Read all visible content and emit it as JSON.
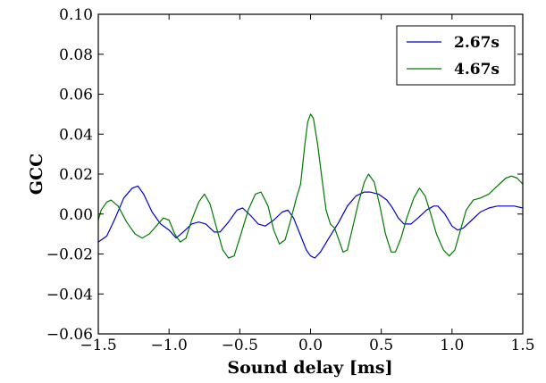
{
  "chart_data": {
    "type": "line",
    "xlabel": "Sound delay [ms]",
    "ylabel": "GCC",
    "xlim": [
      -1.5,
      1.5
    ],
    "ylim": [
      -0.06,
      0.1
    ],
    "xticks": [
      "−1.5",
      "−1.0",
      "−0.5",
      "0.0",
      "0.5",
      "1.0",
      "1.5"
    ],
    "xtick_values": [
      -1.5,
      -1.0,
      -0.5,
      0.0,
      0.5,
      1.0,
      1.5
    ],
    "yticks": [
      "−0.06",
      "−0.04",
      "−0.02",
      "0.00",
      "0.02",
      "0.04",
      "0.06",
      "0.08",
      "0.10"
    ],
    "ytick_values": [
      -0.06,
      -0.04,
      -0.02,
      0.0,
      0.02,
      0.04,
      0.06,
      0.08,
      0.1
    ],
    "grid": false,
    "legend_position": "top-right",
    "series": [
      {
        "name": "2.67s",
        "color": "#0000cc",
        "points": [
          [
            -1.5,
            -0.014
          ],
          [
            -1.44,
            -0.011
          ],
          [
            -1.38,
            -0.002
          ],
          [
            -1.32,
            0.008
          ],
          [
            -1.26,
            0.013
          ],
          [
            -1.22,
            0.014
          ],
          [
            -1.18,
            0.01
          ],
          [
            -1.12,
            0.001
          ],
          [
            -1.06,
            -0.005
          ],
          [
            -1.0,
            -0.008
          ],
          [
            -0.95,
            -0.012
          ],
          [
            -0.9,
            -0.009
          ],
          [
            -0.84,
            -0.005
          ],
          [
            -0.79,
            -0.004
          ],
          [
            -0.74,
            -0.005
          ],
          [
            -0.68,
            -0.009
          ],
          [
            -0.64,
            -0.009
          ],
          [
            -0.58,
            -0.004
          ],
          [
            -0.52,
            0.002
          ],
          [
            -0.48,
            0.003
          ],
          [
            -0.42,
            -0.001
          ],
          [
            -0.37,
            -0.005
          ],
          [
            -0.32,
            -0.006
          ],
          [
            -0.26,
            -0.003
          ],
          [
            -0.2,
            0.001
          ],
          [
            -0.16,
            0.002
          ],
          [
            -0.12,
            -0.002
          ],
          [
            -0.08,
            -0.009
          ],
          [
            -0.03,
            -0.018
          ],
          [
            0.0,
            -0.021
          ],
          [
            0.03,
            -0.022
          ],
          [
            0.07,
            -0.019
          ],
          [
            0.13,
            -0.012
          ],
          [
            0.2,
            -0.004
          ],
          [
            0.26,
            0.004
          ],
          [
            0.32,
            0.009
          ],
          [
            0.38,
            0.011
          ],
          [
            0.42,
            0.011
          ],
          [
            0.48,
            0.01
          ],
          [
            0.54,
            0.007
          ],
          [
            0.58,
            0.003
          ],
          [
            0.62,
            -0.002
          ],
          [
            0.66,
            -0.005
          ],
          [
            0.71,
            -0.005
          ],
          [
            0.76,
            -0.002
          ],
          [
            0.82,
            0.002
          ],
          [
            0.87,
            0.004
          ],
          [
            0.9,
            0.004
          ],
          [
            0.95,
            0.0
          ],
          [
            1.0,
            -0.006
          ],
          [
            1.04,
            -0.008
          ],
          [
            1.08,
            -0.007
          ],
          [
            1.14,
            -0.003
          ],
          [
            1.2,
            0.001
          ],
          [
            1.26,
            0.003
          ],
          [
            1.32,
            0.004
          ],
          [
            1.38,
            0.004
          ],
          [
            1.44,
            0.004
          ],
          [
            1.5,
            0.003
          ]
        ]
      },
      {
        "name": "4.67s",
        "color": "#007a00",
        "points": [
          [
            -1.5,
            -0.003
          ],
          [
            -1.48,
            0.002
          ],
          [
            -1.44,
            0.006
          ],
          [
            -1.41,
            0.007
          ],
          [
            -1.36,
            0.004
          ],
          [
            -1.3,
            -0.004
          ],
          [
            -1.24,
            -0.01
          ],
          [
            -1.19,
            -0.012
          ],
          [
            -1.14,
            -0.01
          ],
          [
            -1.09,
            -0.006
          ],
          [
            -1.04,
            -0.002
          ],
          [
            -1.0,
            -0.003
          ],
          [
            -0.96,
            -0.01
          ],
          [
            -0.92,
            -0.014
          ],
          [
            -0.88,
            -0.012
          ],
          [
            -0.84,
            -0.003
          ],
          [
            -0.79,
            0.006
          ],
          [
            -0.75,
            0.01
          ],
          [
            -0.71,
            0.005
          ],
          [
            -0.66,
            -0.008
          ],
          [
            -0.62,
            -0.018
          ],
          [
            -0.58,
            -0.022
          ],
          [
            -0.54,
            -0.021
          ],
          [
            -0.5,
            -0.012
          ],
          [
            -0.44,
            0.002
          ],
          [
            -0.39,
            0.01
          ],
          [
            -0.35,
            0.011
          ],
          [
            -0.3,
            0.004
          ],
          [
            -0.26,
            -0.008
          ],
          [
            -0.22,
            -0.015
          ],
          [
            -0.18,
            -0.013
          ],
          [
            -0.14,
            -0.003
          ],
          [
            -0.1,
            0.008
          ],
          [
            -0.07,
            0.015
          ],
          [
            -0.04,
            0.035
          ],
          [
            -0.02,
            0.046
          ],
          [
            0.0,
            0.05
          ],
          [
            0.02,
            0.048
          ],
          [
            0.05,
            0.035
          ],
          [
            0.08,
            0.018
          ],
          [
            0.11,
            0.002
          ],
          [
            0.14,
            -0.005
          ],
          [
            0.17,
            -0.007
          ],
          [
            0.2,
            -0.013
          ],
          [
            0.23,
            -0.019
          ],
          [
            0.26,
            -0.018
          ],
          [
            0.3,
            -0.006
          ],
          [
            0.34,
            0.006
          ],
          [
            0.38,
            0.016
          ],
          [
            0.41,
            0.02
          ],
          [
            0.45,
            0.016
          ],
          [
            0.49,
            0.004
          ],
          [
            0.53,
            -0.01
          ],
          [
            0.57,
            -0.019
          ],
          [
            0.6,
            -0.019
          ],
          [
            0.64,
            -0.012
          ],
          [
            0.68,
            -0.002
          ],
          [
            0.73,
            0.008
          ],
          [
            0.77,
            0.013
          ],
          [
            0.81,
            0.009
          ],
          [
            0.85,
            0.0
          ],
          [
            0.89,
            -0.01
          ],
          [
            0.94,
            -0.018
          ],
          [
            0.98,
            -0.021
          ],
          [
            1.02,
            -0.018
          ],
          [
            1.06,
            -0.008
          ],
          [
            1.1,
            0.002
          ],
          [
            1.15,
            0.007
          ],
          [
            1.2,
            0.008
          ],
          [
            1.26,
            0.01
          ],
          [
            1.32,
            0.014
          ],
          [
            1.38,
            0.018
          ],
          [
            1.42,
            0.019
          ],
          [
            1.46,
            0.018
          ],
          [
            1.5,
            0.015
          ]
        ]
      }
    ]
  }
}
